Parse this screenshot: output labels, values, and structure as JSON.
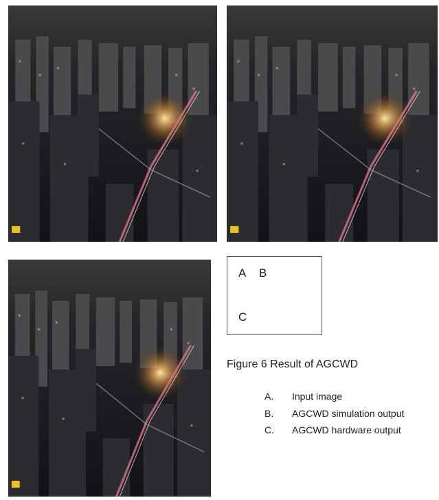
{
  "figure": {
    "legend_box": {
      "row1": [
        "A",
        "B"
      ],
      "row2": [
        "C"
      ]
    },
    "caption": "Figure 6 Result of AGCWD",
    "items": [
      {
        "marker": "A.",
        "text": "Input image"
      },
      {
        "marker": "B.",
        "text": "AGCWD simulation output"
      },
      {
        "marker": "C.",
        "text": "AGCWD hardware output"
      }
    ]
  }
}
